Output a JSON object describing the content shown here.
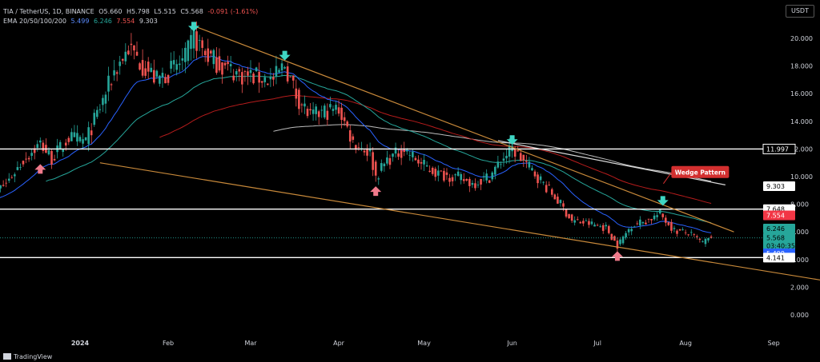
{
  "header": {
    "symbol": "TIA / TetherUS, 1D, BINANCE",
    "open": "O5.660",
    "high": "H5.798",
    "low": "L5.515",
    "close": "C5.568",
    "change": "-0.091 (-1.61%)",
    "ema_label": "EMA 20/50/100/200",
    "ema_values": [
      "5.499",
      "6.246",
      "7.554",
      "9.303"
    ]
  },
  "currency": "USDT",
  "branding": "TradingView",
  "colors": {
    "background": "#000000",
    "up": "#26a69a",
    "down": "#ef5350",
    "ema20": "#2962ff",
    "ema50": "#26a69a",
    "ema100": "#b71c1c",
    "ema200": "#bdbdbd",
    "trendline": "#c8893a",
    "support": "#ffffff",
    "marker_down": "#3fd6c4",
    "marker_up": "#f17a8b"
  },
  "chart_data": {
    "type": "candlestick",
    "y_axis": {
      "range": [
        0,
        21.8
      ],
      "ticks": [
        0.0,
        2.0,
        4.0,
        6.0,
        8.0,
        10.0,
        12.0,
        14.0,
        16.0,
        18.0,
        20.0
      ],
      "tick_labels": [
        "0.000",
        "2.000",
        "4.000",
        "6.000",
        "8.000",
        "10.000",
        "12.000",
        "14.000",
        "16.000",
        "18.000",
        "20.000"
      ]
    },
    "x_axis": {
      "ticks": [
        "2024-01-01",
        "2024-02-01",
        "2024-03-01",
        "2024-04-01",
        "2024-05-01",
        "2024-06-01",
        "2024-07-01",
        "2024-08-01",
        "2024-09-01"
      ],
      "tick_labels": [
        "2024",
        "Feb",
        "Mar",
        "Apr",
        "May",
        "Jun",
        "Jul",
        "Aug",
        "Sep"
      ]
    },
    "price_anchors": [
      {
        "date": "2023-11-30",
        "price": 8.6
      },
      {
        "date": "2023-12-06",
        "price": 9.5
      },
      {
        "date": "2023-12-12",
        "price": 11.2
      },
      {
        "date": "2023-12-18",
        "price": 12.4
      },
      {
        "date": "2023-12-22",
        "price": 11.3
      },
      {
        "date": "2023-12-28",
        "price": 12.8
      },
      {
        "date": "2024-01-03",
        "price": 12.6
      },
      {
        "date": "2024-01-08",
        "price": 15.0
      },
      {
        "date": "2024-01-13",
        "price": 17.6
      },
      {
        "date": "2024-01-18",
        "price": 19.3
      },
      {
        "date": "2024-01-23",
        "price": 18.1
      },
      {
        "date": "2024-01-28",
        "price": 17.0
      },
      {
        "date": "2024-02-02",
        "price": 17.7
      },
      {
        "date": "2024-02-07",
        "price": 18.5
      },
      {
        "date": "2024-02-10",
        "price": 20.1
      },
      {
        "date": "2024-02-14",
        "price": 18.9
      },
      {
        "date": "2024-02-20",
        "price": 18.0
      },
      {
        "date": "2024-02-26",
        "price": 17.4
      },
      {
        "date": "2024-03-03",
        "price": 17.2
      },
      {
        "date": "2024-03-09",
        "price": 17.0
      },
      {
        "date": "2024-03-13",
        "price": 18.1
      },
      {
        "date": "2024-03-17",
        "price": 15.9
      },
      {
        "date": "2024-03-22",
        "price": 14.3
      },
      {
        "date": "2024-03-27",
        "price": 14.7
      },
      {
        "date": "2024-04-01",
        "price": 14.9
      },
      {
        "date": "2024-04-06",
        "price": 12.5
      },
      {
        "date": "2024-04-12",
        "price": 11.7
      },
      {
        "date": "2024-04-14",
        "price": 10.0
      },
      {
        "date": "2024-04-18",
        "price": 11.2
      },
      {
        "date": "2024-04-24",
        "price": 12.0
      },
      {
        "date": "2024-04-30",
        "price": 10.9
      },
      {
        "date": "2024-05-06",
        "price": 10.2
      },
      {
        "date": "2024-05-12",
        "price": 10.0
      },
      {
        "date": "2024-05-18",
        "price": 9.5
      },
      {
        "date": "2024-05-24",
        "price": 10.0
      },
      {
        "date": "2024-05-29",
        "price": 11.4
      },
      {
        "date": "2024-06-01",
        "price": 12.0
      },
      {
        "date": "2024-06-06",
        "price": 10.9
      },
      {
        "date": "2024-06-12",
        "price": 9.5
      },
      {
        "date": "2024-06-18",
        "price": 8.0
      },
      {
        "date": "2024-06-22",
        "price": 6.8
      },
      {
        "date": "2024-06-28",
        "price": 6.6
      },
      {
        "date": "2024-07-04",
        "price": 6.3
      },
      {
        "date": "2024-07-08",
        "price": 5.0
      },
      {
        "date": "2024-07-13",
        "price": 6.5
      },
      {
        "date": "2024-07-18",
        "price": 6.8
      },
      {
        "date": "2024-07-23",
        "price": 7.3
      },
      {
        "date": "2024-07-28",
        "price": 6.1
      },
      {
        "date": "2024-08-02",
        "price": 5.9
      },
      {
        "date": "2024-08-07",
        "price": 5.2
      },
      {
        "date": "2024-08-10",
        "price": 5.57
      }
    ],
    "horizontal_levels": [
      {
        "price": 11.997,
        "label": "11.997"
      },
      {
        "price": 7.648,
        "label": "7.648"
      },
      {
        "price": 4.141,
        "label": "4.141"
      }
    ],
    "price_tags": [
      {
        "label": "9.303",
        "price": 9.303,
        "color": "#ffffff",
        "text": "#000000"
      },
      {
        "label": "7.648",
        "price": 7.648,
        "color": "#ffffff",
        "text": "#000000"
      },
      {
        "label": "7.554",
        "price": 7.2,
        "color": "#f23645",
        "text": "#ffffff"
      },
      {
        "label": "6.246",
        "price": 6.246,
        "color": "#26a69a",
        "text": "#000000"
      },
      {
        "label": "5.568",
        "price": 5.568,
        "color": "#26a69a",
        "text": "#000000"
      },
      {
        "label": "03:40:35",
        "price": 5.0,
        "color": "#26a69a",
        "text": "#000000"
      },
      {
        "label": "5.499",
        "price": 4.45,
        "color": "#2962ff",
        "text": "#ffffff"
      },
      {
        "label": "4.141",
        "price": 4.141,
        "color": "#ffffff",
        "text": "#000000"
      }
    ],
    "trendlines": [
      {
        "name": "upper",
        "from": {
          "date": "2024-02-10",
          "price": 20.9
        },
        "to": {
          "date": "2024-08-18",
          "price": 6.0
        }
      },
      {
        "name": "lower",
        "from": {
          "date": "2024-01-08",
          "price": 11.0
        },
        "to": {
          "date": "2024-09-21",
          "price": 2.4
        }
      },
      {
        "name": "channel",
        "from": {
          "date": "2024-05-27",
          "price": 12.6
        },
        "to": {
          "date": "2024-08-15",
          "price": 9.4
        }
      }
    ],
    "annotation": {
      "text": "Wedge Pattern",
      "date": "2024-07-27",
      "price": 10.3
    },
    "markers_down": [
      {
        "date": "2024-02-10",
        "price": 20.5
      },
      {
        "date": "2024-03-13",
        "price": 18.4
      },
      {
        "date": "2024-06-01",
        "price": 12.3
      },
      {
        "date": "2024-07-24",
        "price": 7.9
      }
    ],
    "markers_up": [
      {
        "date": "2023-12-18",
        "price": 10.9
      },
      {
        "date": "2024-04-14",
        "price": 9.3
      },
      {
        "date": "2024-07-08",
        "price": 4.6
      }
    ]
  }
}
